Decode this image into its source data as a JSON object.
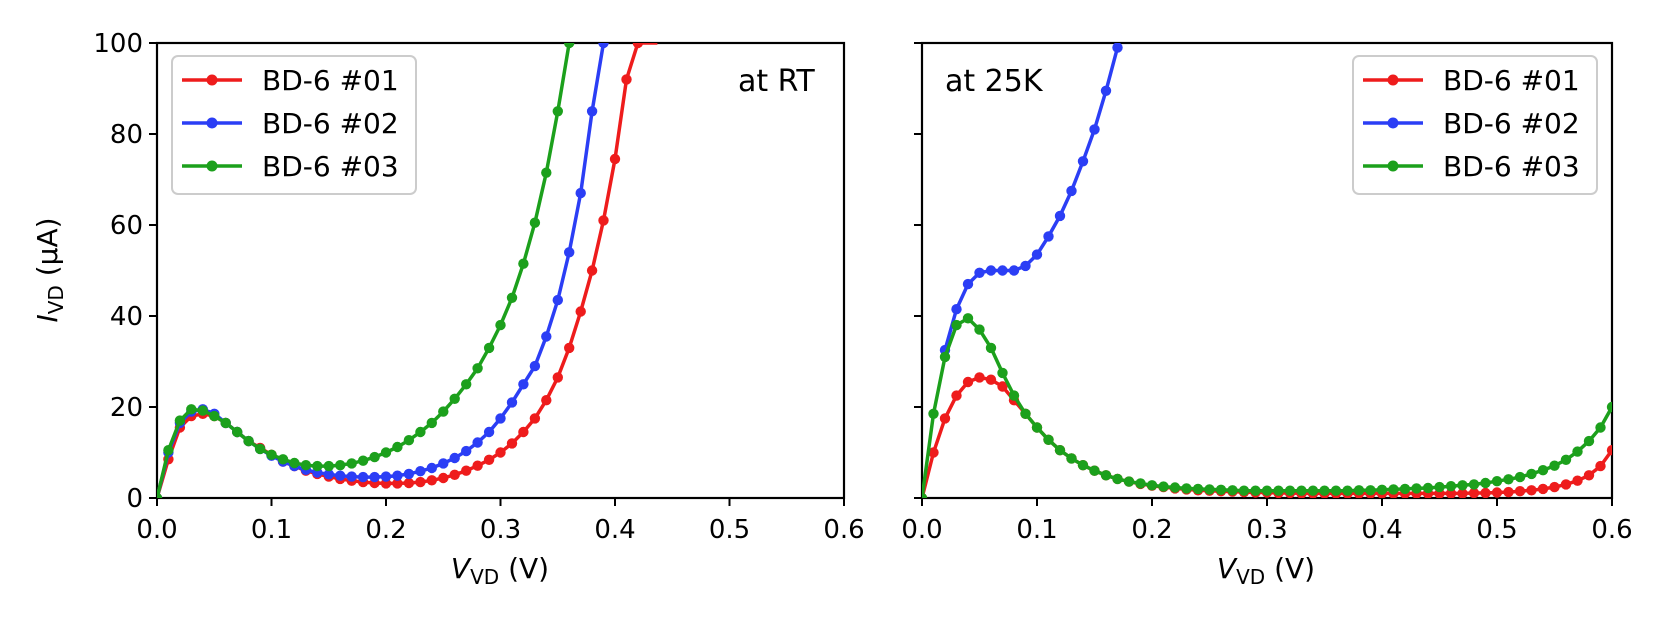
{
  "chart_data": [
    {
      "type": "line",
      "annotation": "at RT",
      "xlabel_main": "V",
      "xlabel_sub": "VD",
      "xlabel_unit": " (V)",
      "ylabel_main": "I",
      "ylabel_sub": "VD",
      "ylabel_unit": " (μA)",
      "xlim": [
        0,
        0.6
      ],
      "ylim": [
        0,
        100
      ],
      "xticks": [
        "0.0",
        "0.1",
        "0.2",
        "0.3",
        "0.4",
        "0.5",
        "0.6"
      ],
      "yticks": [
        "0",
        "20",
        "40",
        "60",
        "80",
        "100"
      ],
      "legend_position": "top-left",
      "series": [
        {
          "name": "BD-6 #01",
          "color": "#ee1c1c",
          "x": [
            0,
            0.01,
            0.02,
            0.03,
            0.04,
            0.05,
            0.06,
            0.07,
            0.08,
            0.09,
            0.1,
            0.11,
            0.12,
            0.13,
            0.14,
            0.15,
            0.16,
            0.17,
            0.18,
            0.19,
            0.2,
            0.21,
            0.22,
            0.23,
            0.24,
            0.25,
            0.26,
            0.27,
            0.28,
            0.29,
            0.3,
            0.31,
            0.32,
            0.33,
            0.34,
            0.35,
            0.36,
            0.37,
            0.38,
            0.39,
            0.4,
            0.41,
            0.42,
            0.43,
            0.437
          ],
          "y": [
            0,
            8.5,
            15.5,
            18,
            18.5,
            18,
            16.5,
            14.5,
            12.5,
            11,
            9.5,
            8,
            7,
            6,
            5.3,
            4.7,
            4.2,
            3.8,
            3.5,
            3.3,
            3.2,
            3.2,
            3.3,
            3.5,
            3.9,
            4.4,
            5.1,
            6,
            7.1,
            8.4,
            10,
            12,
            14.5,
            17.5,
            21.5,
            26.5,
            33,
            41,
            50,
            61,
            74.5,
            92,
            100,
            100,
            100
          ]
        },
        {
          "name": "BD-6 #02",
          "color": "#2b3ef5",
          "x": [
            0,
            0.01,
            0.02,
            0.03,
            0.04,
            0.05,
            0.06,
            0.07,
            0.08,
            0.09,
            0.1,
            0.11,
            0.12,
            0.13,
            0.14,
            0.15,
            0.16,
            0.17,
            0.18,
            0.19,
            0.2,
            0.21,
            0.22,
            0.23,
            0.24,
            0.25,
            0.26,
            0.27,
            0.28,
            0.29,
            0.3,
            0.31,
            0.32,
            0.33,
            0.34,
            0.35,
            0.36,
            0.37,
            0.38,
            0.39
          ],
          "y": [
            0,
            10,
            16.5,
            19,
            19.5,
            18.5,
            16.5,
            14.5,
            12.5,
            10.8,
            9.3,
            8,
            7,
            6.2,
            5.6,
            5.2,
            4.9,
            4.7,
            4.6,
            4.6,
            4.7,
            4.9,
            5.3,
            5.9,
            6.6,
            7.6,
            8.8,
            10.3,
            12.2,
            14.5,
            17.5,
            21,
            25,
            29,
            35.5,
            43.5,
            54,
            67,
            85,
            100
          ]
        },
        {
          "name": "BD-6 #03",
          "color": "#1ca01c",
          "x": [
            0,
            0.01,
            0.02,
            0.03,
            0.04,
            0.05,
            0.06,
            0.07,
            0.08,
            0.09,
            0.1,
            0.11,
            0.12,
            0.13,
            0.14,
            0.15,
            0.16,
            0.17,
            0.18,
            0.19,
            0.2,
            0.21,
            0.22,
            0.23,
            0.24,
            0.25,
            0.26,
            0.27,
            0.28,
            0.29,
            0.3,
            0.31,
            0.32,
            0.33,
            0.34,
            0.35,
            0.36
          ],
          "y": [
            0,
            10.5,
            17,
            19.5,
            19.2,
            18,
            16.5,
            14.5,
            12.5,
            10.8,
            9.5,
            8.5,
            7.7,
            7.2,
            7.0,
            7.0,
            7.2,
            7.6,
            8.2,
            9.0,
            10.0,
            11.2,
            12.7,
            14.5,
            16.5,
            19,
            21.8,
            25,
            28.5,
            33,
            38,
            44,
            51.5,
            60.5,
            71.5,
            85,
            100
          ]
        }
      ]
    },
    {
      "type": "line",
      "annotation": "at 25K",
      "xlabel_main": "V",
      "xlabel_sub": "VD",
      "xlabel_unit": " (V)",
      "xlim": [
        0,
        0.6
      ],
      "ylim": [
        0,
        100
      ],
      "xticks": [
        "0.0",
        "0.1",
        "0.2",
        "0.3",
        "0.4",
        "0.5",
        "0.6"
      ],
      "legend_position": "top-right",
      "series": [
        {
          "name": "BD-6 #01",
          "color": "#ee1c1c",
          "x": [
            0,
            0.01,
            0.02,
            0.03,
            0.04,
            0.05,
            0.06,
            0.07,
            0.08,
            0.09,
            0.1,
            0.11,
            0.12,
            0.13,
            0.14,
            0.15,
            0.16,
            0.17,
            0.18,
            0.19,
            0.2,
            0.21,
            0.22,
            0.23,
            0.24,
            0.25,
            0.26,
            0.27,
            0.28,
            0.29,
            0.3,
            0.31,
            0.32,
            0.33,
            0.34,
            0.35,
            0.36,
            0.37,
            0.38,
            0.39,
            0.4,
            0.41,
            0.42,
            0.43,
            0.44,
            0.45,
            0.46,
            0.47,
            0.48,
            0.49,
            0.5,
            0.51,
            0.52,
            0.53,
            0.54,
            0.55,
            0.56,
            0.57,
            0.58,
            0.59,
            0.6
          ],
          "y": [
            0,
            10,
            17.5,
            22.5,
            25.5,
            26.5,
            26,
            24.5,
            21.5,
            18.5,
            15.5,
            12.8,
            10.5,
            8.7,
            7.2,
            6.0,
            5.0,
            4.2,
            3.6,
            3.1,
            2.7,
            2.4,
            2.1,
            1.9,
            1.7,
            1.6,
            1.5,
            1.4,
            1.3,
            1.2,
            1.2,
            1.1,
            1.1,
            1.0,
            1.0,
            1.0,
            1.0,
            1.0,
            1.0,
            1.0,
            1.0,
            1.0,
            1.0,
            1.0,
            1.0,
            1.0,
            1.0,
            1.0,
            1.1,
            1.1,
            1.2,
            1.3,
            1.5,
            1.7,
            2.0,
            2.4,
            3.0,
            3.8,
            5.0,
            7.0,
            10.5
          ]
        },
        {
          "name": "BD-6 #02",
          "color": "#2b3ef5",
          "x": [
            0.02,
            0.03,
            0.04,
            0.05,
            0.06,
            0.07,
            0.08,
            0.09,
            0.1,
            0.11,
            0.12,
            0.13,
            0.14,
            0.15,
            0.16,
            0.17
          ],
          "y": [
            32.5,
            41.5,
            47,
            49.5,
            50,
            50,
            50,
            51,
            53.5,
            57.5,
            62,
            67.5,
            74,
            81,
            89.5,
            99
          ]
        },
        {
          "name": "BD-6 #03",
          "color": "#1ca01c",
          "x": [
            0,
            0.01,
            0.02,
            0.03,
            0.04,
            0.05,
            0.06,
            0.07,
            0.08,
            0.09,
            0.1,
            0.11,
            0.12,
            0.13,
            0.14,
            0.15,
            0.16,
            0.17,
            0.18,
            0.19,
            0.2,
            0.21,
            0.22,
            0.23,
            0.24,
            0.25,
            0.26,
            0.27,
            0.28,
            0.29,
            0.3,
            0.31,
            0.32,
            0.33,
            0.34,
            0.35,
            0.36,
            0.37,
            0.38,
            0.39,
            0.4,
            0.41,
            0.42,
            0.43,
            0.44,
            0.45,
            0.46,
            0.47,
            0.48,
            0.49,
            0.5,
            0.51,
            0.52,
            0.53,
            0.54,
            0.55,
            0.56,
            0.57,
            0.58,
            0.59,
            0.6
          ],
          "y": [
            0,
            18.5,
            31,
            38,
            39.5,
            37,
            33,
            27.5,
            22.5,
            18.5,
            15.5,
            12.8,
            10.5,
            8.7,
            7.2,
            6.0,
            5.0,
            4.2,
            3.6,
            3.2,
            2.8,
            2.5,
            2.3,
            2.1,
            2.0,
            1.9,
            1.8,
            1.7,
            1.6,
            1.6,
            1.6,
            1.6,
            1.6,
            1.6,
            1.6,
            1.6,
            1.6,
            1.6,
            1.7,
            1.7,
            1.8,
            1.9,
            2.0,
            2.1,
            2.2,
            2.4,
            2.6,
            2.8,
            3.0,
            3.3,
            3.7,
            4.1,
            4.6,
            5.3,
            6.1,
            7.1,
            8.4,
            10.2,
            12.5,
            15.5,
            20
          ]
        }
      ]
    }
  ]
}
